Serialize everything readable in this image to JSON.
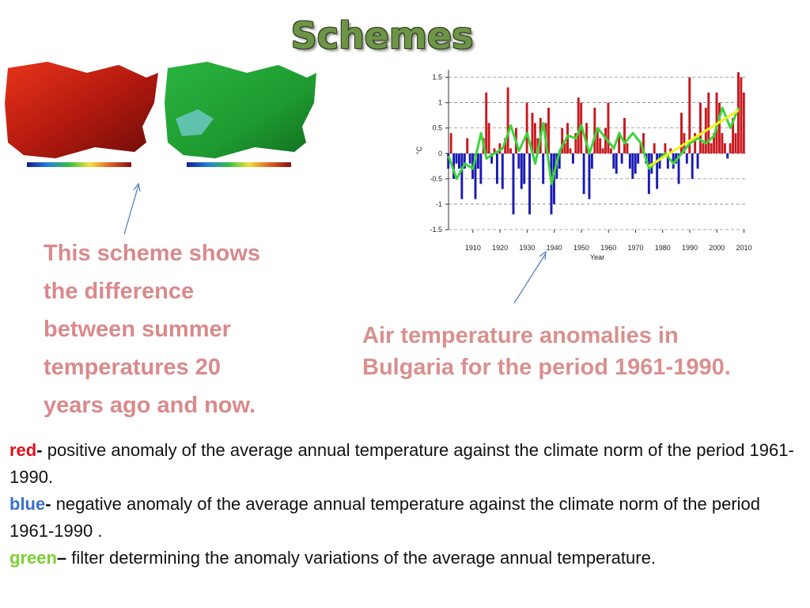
{
  "title": "Schemes",
  "left_caption": {
    "lines": [
      "This scheme shows",
      "the difference",
      "between summer",
      "temperatures 20",
      "years ago and now."
    ]
  },
  "right_caption": {
    "lines": [
      "Air temperature anomalies in",
      "Bulgaria for the period 1961-1990."
    ]
  },
  "legend": [
    {
      "key": "red",
      "sep": "-",
      "text": "positive anomaly of the average annual temperature against the climate norm of the period 1961-1990.",
      "color": "#e0101a"
    },
    {
      "key": "blue",
      "sep": "-",
      "text": "negative anomaly of the average annual temperature against the climate norm of the period 1961-1990 .",
      "color": "#3a6fd0"
    },
    {
      "key": "green",
      "sep": "–",
      "text": "filter  determining the anomaly variations of the average annual temperature.",
      "color": "#7ad030"
    }
  ],
  "chart_data": {
    "type": "bar",
    "xlabel": "Year",
    "ylabel": "°C",
    "x": [
      1901,
      1902,
      1903,
      1904,
      1905,
      1906,
      1907,
      1908,
      1909,
      1910,
      1911,
      1912,
      1913,
      1914,
      1915,
      1916,
      1917,
      1918,
      1919,
      1920,
      1921,
      1922,
      1923,
      1924,
      1925,
      1926,
      1927,
      1928,
      1929,
      1930,
      1931,
      1932,
      1933,
      1934,
      1935,
      1936,
      1937,
      1938,
      1939,
      1940,
      1941,
      1942,
      1943,
      1944,
      1945,
      1946,
      1947,
      1948,
      1949,
      1950,
      1951,
      1952,
      1953,
      1954,
      1955,
      1956,
      1957,
      1958,
      1959,
      1960,
      1961,
      1962,
      1963,
      1964,
      1965,
      1966,
      1967,
      1968,
      1969,
      1970,
      1971,
      1972,
      1973,
      1974,
      1975,
      1976,
      1977,
      1978,
      1979,
      1980,
      1981,
      1982,
      1983,
      1984,
      1985,
      1986,
      1987,
      1988,
      1989,
      1990,
      1991,
      1992,
      1993,
      1994,
      1995,
      1996,
      1997,
      1998,
      1999,
      2000,
      2001,
      2002,
      2003,
      2004,
      2005,
      2006,
      2007,
      2008,
      2009,
      2010
    ],
    "values": [
      -0.3,
      0.4,
      -0.5,
      -0.2,
      -0.3,
      -0.9,
      -0.3,
      0.3,
      -0.2,
      -0.5,
      -0.9,
      -0.3,
      -0.6,
      0.3,
      1.2,
      0.6,
      -0.2,
      0.1,
      -0.6,
      0.2,
      -0.7,
      0.3,
      1.3,
      0.1,
      -1.2,
      0.5,
      -0.3,
      -0.7,
      -0.6,
      1.0,
      -1.2,
      0.8,
      0.6,
      0.3,
      0.7,
      -0.6,
      0.6,
      0.9,
      -1.2,
      -1.0,
      -0.5,
      -0.3,
      0.5,
      0.2,
      0.6,
      0.1,
      -0.2,
      0.4,
      1.1,
      1.0,
      -0.8,
      0.6,
      -0.9,
      -0.3,
      0.9,
      0.5,
      0.3,
      0.1,
      0.5,
      1.0,
      0.1,
      -0.3,
      -0.4,
      0.4,
      -0.2,
      0.7,
      0.2,
      -0.3,
      -0.5,
      -0.4,
      -0.2,
      0.2,
      0.4,
      -0.2,
      -0.8,
      -0.4,
      0.2,
      -0.7,
      -0.3,
      -0.1,
      0.2,
      -0.3,
      0.1,
      -0.3,
      -0.2,
      -0.6,
      0.8,
      0.4,
      -0.2,
      1.5,
      -0.5,
      0.4,
      -0.3,
      1.0,
      0.2,
      0.9,
      1.2,
      0.2,
      0.4,
      1.2,
      1.0,
      0.4,
      0.2,
      -0.1,
      0.2,
      0.7,
      0.4,
      1.6,
      1.5,
      1.2
    ],
    "positive_color": "#c8191e",
    "negative_color": "#1a1ab4",
    "lines": [
      {
        "color": "#3bd43b",
        "x": [
          1901,
          1904,
          1907,
          1910,
          1913,
          1915,
          1918,
          1921,
          1924,
          1927,
          1930,
          1933,
          1936,
          1939,
          1942,
          1945,
          1948,
          1950,
          1953,
          1956,
          1959,
          1962,
          1964,
          1966,
          1969,
          1972,
          1975,
          1978,
          1981,
          1984,
          1987,
          1990,
          1993,
          1996,
          1999,
          2002,
          2005,
          2008
        ],
        "values": [
          -0.05,
          -0.5,
          -0.2,
          -0.3,
          0.4,
          -0.1,
          0.0,
          0.1,
          0.55,
          0.05,
          0.4,
          -0.2,
          0.6,
          -0.6,
          0.05,
          0.35,
          0.3,
          0.55,
          0.0,
          0.5,
          0.3,
          0.1,
          0.4,
          0.2,
          0.4,
          0.2,
          -0.3,
          -0.15,
          0.0,
          -0.2,
          0.0,
          0.2,
          0.3,
          0.2,
          0.35,
          0.9,
          0.5,
          0.9
        ]
      },
      {
        "color": "#f2f21e",
        "x": [
          1975,
          2008
        ],
        "values": [
          -0.25,
          0.85
        ]
      }
    ],
    "xlim": [
      1901,
      2011
    ],
    "ylim": [
      -1.5,
      1.65
    ],
    "xticks": [
      1910,
      1920,
      1930,
      1940,
      1950,
      1960,
      1970,
      1980,
      1990,
      2000,
      2010
    ],
    "yticks": [
      -1.5,
      -1,
      -0.5,
      0,
      0.5,
      1,
      1.5
    ],
    "grid": true
  }
}
